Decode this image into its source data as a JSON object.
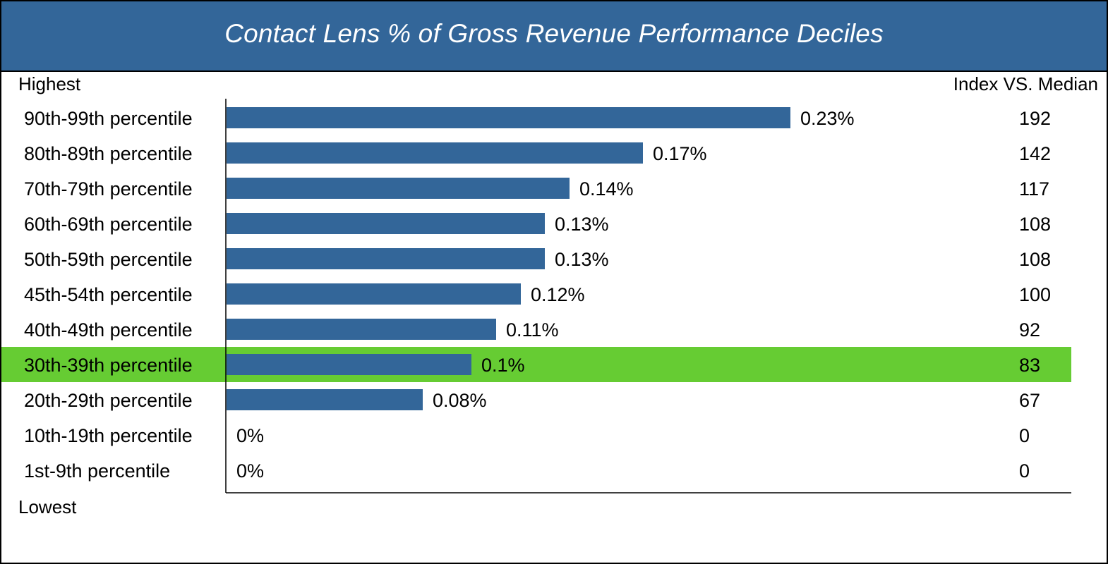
{
  "colors": {
    "header_bg": "#336699",
    "bar": "#336699",
    "highlight_bg": "#66cc33",
    "axis": "#000000",
    "text": "#000000"
  },
  "header": {
    "title": "Contact Lens % of Gross Revenue Performance Deciles"
  },
  "labels": {
    "top": "Highest",
    "bottom": "Lowest",
    "index_header": "Index VS. Median"
  },
  "chart_data": {
    "type": "bar",
    "orientation": "horizontal",
    "title": "Contact Lens % of Gross Revenue Performance Deciles",
    "categories": [
      "90th-99th percentile",
      "80th-89th percentile",
      "70th-79th percentile",
      "60th-69th percentile",
      "50th-59th percentile",
      "45th-54th percentile",
      "40th-49th percentile",
      "30th-39th percentile",
      "20th-29th percentile",
      "10th-19th percentile",
      "1st-9th percentile"
    ],
    "values": [
      0.23,
      0.17,
      0.14,
      0.13,
      0.13,
      0.12,
      0.11,
      0.1,
      0.08,
      0,
      0
    ],
    "value_labels": [
      "0.23%",
      "0.17%",
      "0.14%",
      "0.13%",
      "0.13%",
      "0.12%",
      "0.11%",
      "0.1%",
      "0.08%",
      "0%",
      "0%"
    ],
    "index_vs_median": [
      "192",
      "142",
      "117",
      "108",
      "108",
      "100",
      "92",
      "83",
      "67",
      "0",
      "0"
    ],
    "highlighted_category": "30th-39th percentile",
    "xlim": [
      0,
      0.345
    ],
    "grid": false,
    "legend": "none"
  }
}
